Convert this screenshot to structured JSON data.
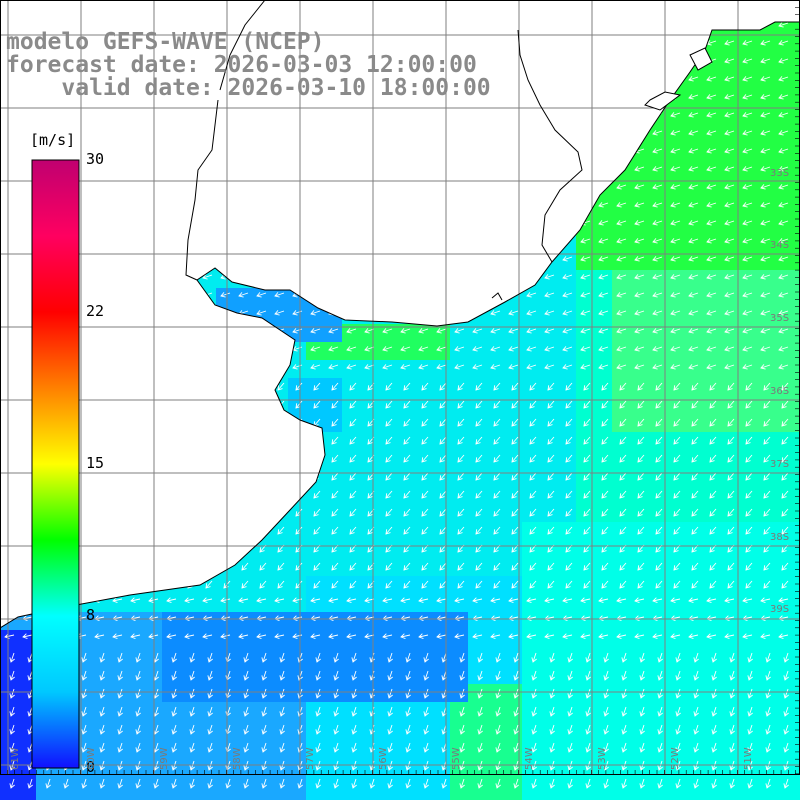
{
  "title": {
    "model": "modelo GEFS-WAVE (NCEP)",
    "forecast": "forecast date: 2026-03-03 12:00:00",
    "valid": "    valid date: 2026-03-10 18:00:00"
  },
  "colorbar": {
    "unit": "[m/s]",
    "ticks": [
      "30",
      "22",
      "15",
      "8",
      "0"
    ],
    "tick_values": [
      30,
      22,
      15,
      8,
      0
    ],
    "range": [
      0,
      30
    ],
    "stops": [
      "#1010ff",
      "#00c8ff",
      "#00ffff",
      "#00ff00",
      "#ffff00",
      "#ff8000",
      "#ff0000",
      "#ff0060",
      "#c00070"
    ]
  },
  "lat_labels": [
    "33S",
    "34S",
    "35S",
    "36S",
    "37S",
    "38S",
    "39S"
  ],
  "lon_labels": [
    "61W",
    "60W",
    "59W",
    "58W",
    "57W",
    "56W",
    "55W",
    "54W",
    "53W",
    "52W",
    "51W"
  ],
  "colors": {
    "land": "#ffffff",
    "coast": "#000000",
    "grid": "#7f7f7f",
    "arrow": "#ffffff"
  },
  "field": {
    "variable": "wind speed",
    "dominant_direction": "SW"
  }
}
